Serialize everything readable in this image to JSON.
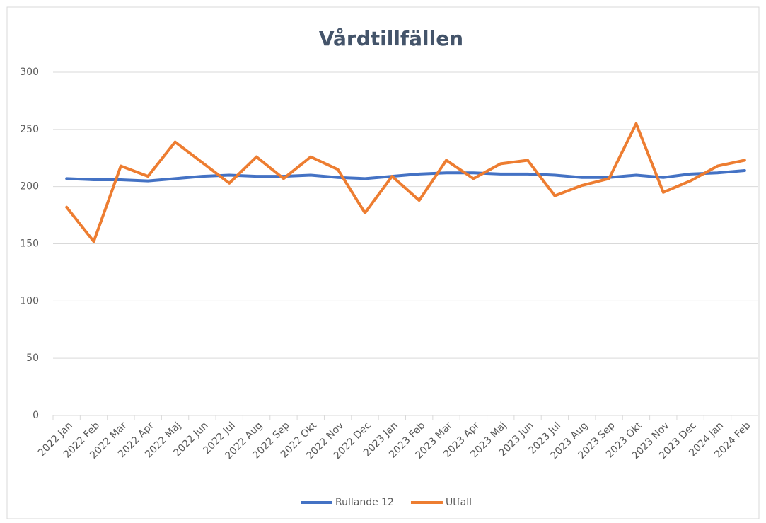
{
  "chart_data": {
    "type": "line",
    "title": "Vårdtillfällen",
    "categories": [
      "2022 Jan",
      "2022 Feb",
      "2022 Mar",
      "2022 Apr",
      "2022 Maj",
      "2022 Jun",
      "2022 Jul",
      "2022 Aug",
      "2022 Sep",
      "2022 Okt",
      "2022 Nov",
      "2022 Dec",
      "2023 Jan",
      "2023 Feb",
      "2023 Mar",
      "2023 Apr",
      "2023 Maj",
      "2023 Jun",
      "2023 Jul",
      "2023 Aug",
      "2023 Sep",
      "2023 Okt",
      "2023 Nov",
      "2023 Dec",
      "2024 Jan",
      "2024 Feb"
    ],
    "series": [
      {
        "name": "Rullande 12",
        "color": "#4472c4",
        "values": [
          207,
          206,
          206,
          205,
          207,
          209,
          210,
          209,
          209,
          210,
          208,
          207,
          209,
          211,
          212,
          212,
          211,
          211,
          210,
          208,
          208,
          210,
          208,
          211,
          212,
          214
        ]
      },
      {
        "name": "Utfall",
        "color": "#ed7d31",
        "values": [
          182,
          152,
          218,
          209,
          239,
          221,
          203,
          226,
          207,
          226,
          215,
          177,
          209,
          188,
          223,
          207,
          220,
          223,
          192,
          201,
          207,
          255,
          195,
          205,
          218,
          223
        ]
      }
    ],
    "ylim": [
      0,
      300
    ],
    "yticks": [
      0,
      50,
      100,
      150,
      200,
      250,
      300
    ],
    "grid": true,
    "legend": "bottom"
  }
}
